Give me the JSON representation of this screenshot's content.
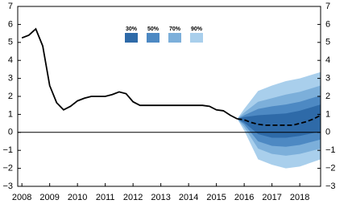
{
  "chart_data": {
    "type": "fan",
    "xlim": [
      2007.85,
      2018.75
    ],
    "xticks": [
      2008,
      2009,
      2010,
      2011,
      2012,
      2013,
      2014,
      2015,
      2016,
      2017,
      2018
    ],
    "ylim": [
      -3,
      7
    ],
    "yticks": [
      {
        "value": -3,
        "label": "−3"
      },
      {
        "value": -2,
        "label": "−2"
      },
      {
        "value": -1,
        "label": "−1"
      },
      0,
      1,
      2,
      3,
      4,
      5,
      6,
      7
    ],
    "zero_line": true,
    "bands": [
      {
        "name": "90%",
        "color": "#a9cfec",
        "x": [
          2015.75,
          2016.0,
          2016.5,
          2017.0,
          2017.5,
          2018.0,
          2018.75
        ],
        "lower": [
          0.75,
          0.1,
          -1.5,
          -1.8,
          -2.0,
          -1.9,
          -1.5
        ],
        "upper": [
          0.75,
          1.3,
          2.3,
          2.6,
          2.85,
          3.0,
          3.35
        ]
      },
      {
        "name": "70%",
        "color": "#7cafda",
        "x": [
          2015.75,
          2016.0,
          2016.5,
          2017.0,
          2017.5,
          2018.0,
          2018.75
        ],
        "lower": [
          0.75,
          0.3,
          -0.9,
          -1.2,
          -1.3,
          -1.2,
          -0.9
        ],
        "upper": [
          0.75,
          1.1,
          1.7,
          1.9,
          2.1,
          2.25,
          2.6
        ]
      },
      {
        "name": "50%",
        "color": "#4d89c3",
        "x": [
          2015.75,
          2016.0,
          2016.5,
          2017.0,
          2017.5,
          2018.0,
          2018.75
        ],
        "lower": [
          0.75,
          0.45,
          -0.5,
          -0.75,
          -0.8,
          -0.7,
          -0.4
        ],
        "upper": [
          0.75,
          0.95,
          1.3,
          1.45,
          1.55,
          1.7,
          2.05
        ]
      },
      {
        "name": "30%",
        "color": "#2e6aa8",
        "x": [
          2015.75,
          2016.0,
          2016.5,
          2017.0,
          2017.5,
          2018.0,
          2018.75
        ],
        "lower": [
          0.75,
          0.55,
          -0.1,
          -0.3,
          -0.3,
          -0.2,
          0.05
        ],
        "upper": [
          0.75,
          0.85,
          0.95,
          1.0,
          1.05,
          1.2,
          1.55
        ]
      }
    ],
    "legend_order": [
      3,
      2,
      1,
      0
    ],
    "series": [
      {
        "color": "#000000",
        "dash": false,
        "x": [
          2008.0,
          2008.25,
          2008.5,
          2008.75,
          2009.0,
          2009.25,
          2009.5,
          2009.75,
          2010.0,
          2010.25,
          2010.5,
          2010.75,
          2011.0,
          2011.25,
          2011.5,
          2011.75,
          2012.0,
          2012.25,
          2012.5,
          2012.75,
          2013.0,
          2013.25,
          2013.5,
          2013.75,
          2014.0,
          2014.25,
          2014.5,
          2014.75,
          2015.0,
          2015.25,
          2015.5,
          2015.75
        ],
        "values": [
          5.25,
          5.4,
          5.75,
          4.8,
          2.6,
          1.65,
          1.25,
          1.45,
          1.75,
          1.9,
          2.0,
          2.0,
          2.0,
          2.1,
          2.25,
          2.15,
          1.7,
          1.5,
          1.5,
          1.5,
          1.5,
          1.5,
          1.5,
          1.5,
          1.5,
          1.5,
          1.5,
          1.45,
          1.25,
          1.2,
          0.95,
          0.75
        ]
      },
      {
        "color": "#000000",
        "dash": true,
        "x": [
          2015.75,
          2016.0,
          2016.25,
          2016.5,
          2016.75,
          2017.0,
          2017.25,
          2017.5,
          2017.75,
          2018.0,
          2018.25,
          2018.5,
          2018.75
        ],
        "values": [
          0.75,
          0.7,
          0.55,
          0.45,
          0.4,
          0.4,
          0.4,
          0.4,
          0.4,
          0.5,
          0.6,
          0.75,
          0.95
        ]
      }
    ]
  }
}
